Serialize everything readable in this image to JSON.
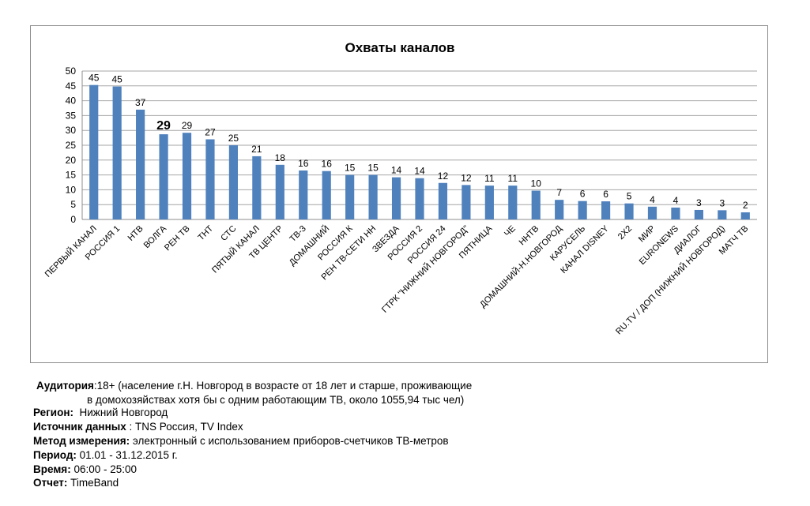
{
  "chart_data": {
    "type": "bar",
    "title": "Охваты каналов",
    "xlabel": "",
    "ylabel": "",
    "ylim": [
      0,
      50
    ],
    "yticks": [
      0,
      5,
      10,
      15,
      20,
      25,
      30,
      35,
      40,
      45,
      50
    ],
    "grid": true,
    "legend": "none",
    "bar_color": "#4f81bd",
    "categories": [
      "ПЕРВЫЙ КАНАЛ",
      "РОССИЯ 1",
      "НТВ",
      "ВОЛГА",
      "РЕН ТВ",
      "ТНТ",
      "СТС",
      "ПЯТЫЙ КАНАЛ",
      "ТВ ЦЕНТР",
      "ТВ-3",
      "ДОМАШНИЙ",
      "РОССИЯ К",
      "РЕН ТВ-СЕТИ НН",
      "ЗВЕЗДА",
      "РОССИЯ 2",
      "РОССИЯ 24",
      "ГТРК \"НИЖНИЙ НОВГОРОД\"",
      "ПЯТНИЦА",
      "ЧЕ",
      "ННТВ",
      "ДОМАШНИЙ-Н.НОВГОРОД",
      "КАРУСЕЛЬ",
      "КАНАЛ DISNEY",
      "2Х2",
      "МИР",
      "EURONEWS",
      "ДИАЛОГ",
      "RU.TV / ДОП (НИЖНИЙ НОВГОРОД)",
      "МАТЧ ТВ"
    ],
    "values": [
      45.3,
      44.8,
      37.0,
      28.7,
      29.2,
      27.0,
      25.0,
      21.3,
      18.4,
      16.5,
      16.3,
      15.0,
      15.0,
      14.2,
      13.9,
      12.3,
      11.6,
      11.4,
      11.4,
      9.7,
      6.6,
      6.2,
      6.1,
      5.4,
      4.3,
      4.0,
      3.2,
      3.1,
      2.4
    ],
    "data_labels": [
      "45",
      "45",
      "37",
      "29",
      "29",
      "27",
      "25",
      "21",
      "18",
      "16",
      "16",
      "15",
      "15",
      "14",
      "14",
      "12",
      "12",
      "11",
      "11",
      "10",
      "7",
      "6",
      "6",
      "5",
      "4",
      "4",
      "3",
      "3",
      "2"
    ],
    "highlighted_label_index": 3
  },
  "info": {
    "auditory_label": "Аудитория",
    "auditory_value_1": ":18+ (население г.Н. Новгород в возрасте от 18 лет и старше, проживающие",
    "auditory_value_2": "в домохозяйствах хотя бы с одним работающим ТВ, около 1055,94 тыс чел)",
    "region_label": "Регион:",
    "region_value": "Нижний Новгород",
    "source_label": "Источник данных",
    "source_value": ": TNS Россия, TV Index",
    "method_label": "Метод измерения:",
    "method_value": "электронный с использованием приборов-счетчиков ТВ-метров",
    "period_label": "Период:",
    "period_value": "01.01 - 31.12.2015 г.",
    "time_label": "Время:",
    "time_value": "06:00 - 25:00",
    "report_label": "Отчет:",
    "report_value": "TimeBand"
  }
}
